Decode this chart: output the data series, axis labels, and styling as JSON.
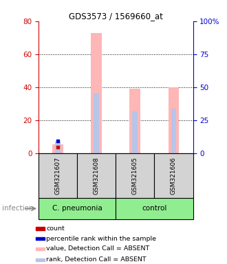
{
  "title": "GDS3573 / 1569660_at",
  "samples": [
    "GSM321607",
    "GSM321608",
    "GSM321605",
    "GSM321606"
  ],
  "group_labels": [
    "C. pneumonia",
    "control"
  ],
  "group_colors": [
    "#90ee90",
    "#90ee90"
  ],
  "bar_color_absent": "#ffb6b6",
  "bar_color_rank_absent": "#b8c4e8",
  "dot_color_count": "#cc0000",
  "dot_color_rank": "#0000cc",
  "left_axis_color": "#cc0000",
  "right_axis_color": "#0000cc",
  "ylim_left": [
    0,
    80
  ],
  "ylim_right": [
    0,
    100
  ],
  "yticks_left": [
    0,
    20,
    40,
    60,
    80
  ],
  "yticks_right": [
    0,
    25,
    50,
    75,
    100
  ],
  "ytick_labels_right": [
    "0",
    "25",
    "50",
    "75",
    "100%"
  ],
  "values_absent": [
    5.5,
    73.0,
    39.0,
    40.0
  ],
  "ranks_absent": [
    8.5,
    45.0,
    31.5,
    33.5
  ],
  "count_val": 3.5,
  "rank_val_pct": 9.0,
  "infection_label": "infection",
  "legend_items": [
    {
      "color": "#cc0000",
      "label": "count"
    },
    {
      "color": "#0000cc",
      "label": "percentile rank within the sample"
    },
    {
      "color": "#ffb6b6",
      "label": "value, Detection Call = ABSENT"
    },
    {
      "color": "#b8c4e8",
      "label": "rank, Detection Call = ABSENT"
    }
  ],
  "background_color": "#ffffff",
  "sample_box_color": "#d3d3d3",
  "group_box_color": "#90ee90"
}
